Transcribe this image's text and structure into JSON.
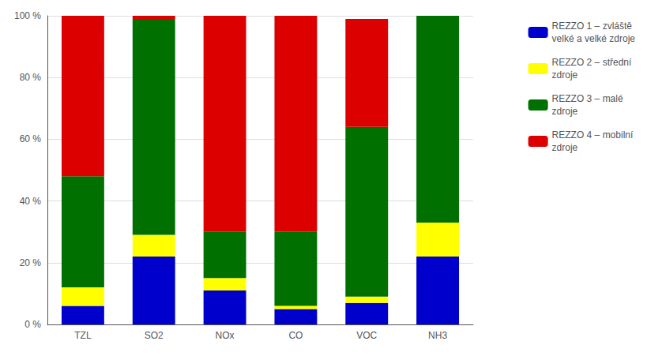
{
  "chart_data": {
    "type": "bar",
    "stacked": true,
    "categories": [
      "TZL",
      "SO2",
      "NOx",
      "CO",
      "VOC",
      "NH3"
    ],
    "series": [
      {
        "name": "REZZO 1 – zvláště\nvelké a velké zdroje",
        "color": "#0000CC",
        "values": [
          6,
          22,
          11,
          5,
          7,
          22
        ]
      },
      {
        "name": "REZZO 2 – střední\nzdroje",
        "color": "#FFFF00",
        "values": [
          6,
          7,
          4,
          1,
          2,
          11
        ]
      },
      {
        "name": "REZZO 3 – malé\nzdroje",
        "color": "#007000",
        "values": [
          36,
          70,
          15,
          24,
          55,
          67
        ]
      },
      {
        "name": "REZZO 4 – mobilní\nzdroje",
        "color": "#DD0000",
        "values": [
          52,
          1,
          70,
          70,
          35,
          0
        ]
      }
    ],
    "ylim": [
      0,
      100
    ],
    "yticks": [
      {
        "value": 0,
        "label": "0 %"
      },
      {
        "value": 20,
        "label": "20 %"
      },
      {
        "value": 40,
        "label": "40 %"
      },
      {
        "value": 60,
        "label": "60 %"
      },
      {
        "value": 80,
        "label": "80 %"
      },
      {
        "value": 100,
        "label": "100 %"
      }
    ],
    "grid": true,
    "legend": "right"
  }
}
